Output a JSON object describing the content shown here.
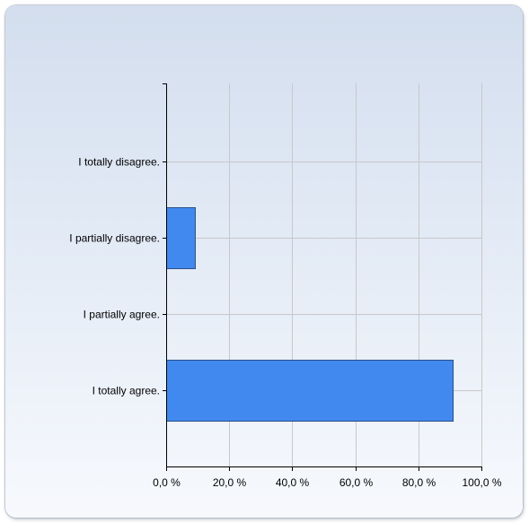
{
  "chart_data": {
    "type": "bar",
    "orientation": "horizontal",
    "title": "",
    "xlabel": "",
    "ylabel": "",
    "categories": [
      "I totally disagree.",
      "I partially disagree.",
      "I partially agree.",
      "I totally agree."
    ],
    "values": [
      0,
      9.1,
      0,
      90.9
    ],
    "unit": "%",
    "xlim": [
      0,
      100
    ],
    "x_ticks": [
      0,
      20,
      40,
      60,
      80,
      100
    ],
    "x_tick_labels": [
      "0,0 %",
      "20,0 %",
      "40,0 %",
      "60,0 %",
      "80,0 %",
      "100,0 %"
    ],
    "grid": true,
    "legend": "none",
    "colors": {
      "bar": "#4189ee",
      "bar_stroke": "#2a4f86",
      "grid": "#c8c8c8",
      "axis": "#000000"
    }
  }
}
